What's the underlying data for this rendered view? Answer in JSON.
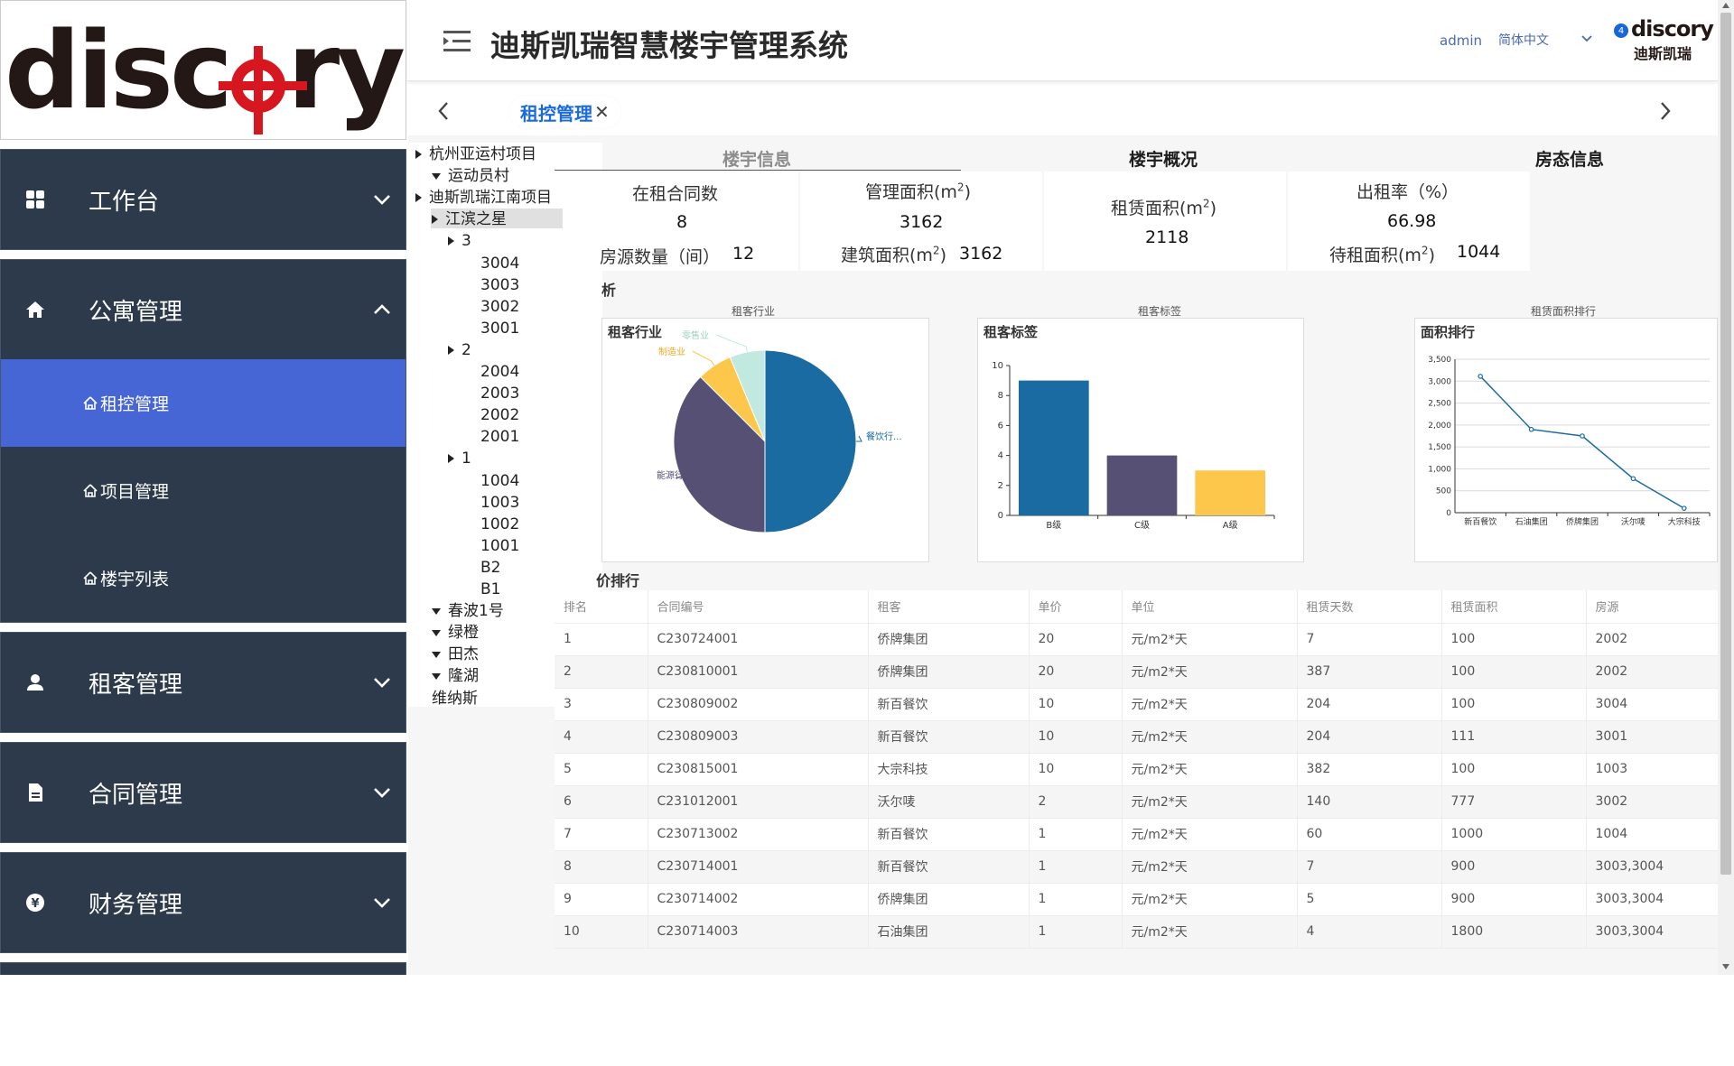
{
  "sidebar": {
    "logo_text_a": "disc",
    "logo_text_b": "ry",
    "menu": [
      {
        "label": "工作台",
        "icon": "dashboard-icon"
      },
      {
        "label": "公寓管理",
        "icon": "home-icon"
      },
      {
        "label": "租客管理",
        "icon": "person-icon"
      },
      {
        "label": "合同管理",
        "icon": "document-icon"
      },
      {
        "label": "财务管理",
        "icon": "yuan-icon"
      }
    ],
    "submenu": [
      {
        "label": "租控管理"
      },
      {
        "label": "项目管理"
      },
      {
        "label": "楼宇列表"
      }
    ]
  },
  "header": {
    "title": "迪斯凯瑞智慧楼宇管理系统",
    "user": "admin",
    "language": "简体中文",
    "badge": "4",
    "brand_en": "discory",
    "brand_cn": "迪斯凯瑞"
  },
  "tabs": {
    "active_label": "租控管理",
    "close": "✕"
  },
  "tree": [
    {
      "label": "杭州亚运村项目",
      "arrow": "r"
    },
    {
      "label": "运动员村",
      "arrow": "d"
    },
    {
      "label": "迪斯凯瑞江南项目",
      "arrow": "r"
    },
    {
      "label": "江滨之星",
      "arrow": "r"
    },
    {
      "label": "3",
      "arrow": "r"
    },
    {
      "label": "3004"
    },
    {
      "label": "3003"
    },
    {
      "label": "3002"
    },
    {
      "label": "3001"
    },
    {
      "label": "2",
      "arrow": "r"
    },
    {
      "label": "2004"
    },
    {
      "label": "2003"
    },
    {
      "label": "2002"
    },
    {
      "label": "2001"
    },
    {
      "label": "1",
      "arrow": "r"
    },
    {
      "label": "1004"
    },
    {
      "label": "1003"
    },
    {
      "label": "1002"
    },
    {
      "label": "1001"
    },
    {
      "label": "B2"
    },
    {
      "label": "B1"
    },
    {
      "label": "春波1号",
      "arrow": "d"
    },
    {
      "label": "绿橙",
      "arrow": "d"
    },
    {
      "label": "田杰",
      "arrow": "d"
    },
    {
      "label": "隆湖",
      "arrow": "d"
    },
    {
      "label": "维纳斯"
    }
  ],
  "page_tabs": [
    "楼宇信息",
    "楼宇概况",
    "房态信息"
  ],
  "stats": {
    "in_contract_label": "在租合同数",
    "in_contract_value": "8",
    "rooms_label": "房源数量（间）",
    "rooms_value": "12",
    "mgmt_area_label_a": "管理面积(m",
    "mgmt_area_label_sup": "2",
    "mgmt_area_label_b": ")",
    "mgmt_area_value": "3162",
    "build_area_label_a": "建筑面积(m",
    "build_area_label_sup": "2",
    "build_area_label_b": ")",
    "build_area_value": "3162",
    "lease_area_label_a": "租赁面积(m",
    "lease_area_label_sup": "2",
    "lease_area_label_b": ")",
    "lease_area_value": "2118",
    "occupancy_label": "出租率（%）",
    "occupancy_value": "66.98",
    "vacant_label_a": "待租面积(m",
    "vacant_label_sup": "2",
    "vacant_label_b": ")",
    "vacant_value": "1044"
  },
  "section_frag_1": "析",
  "section_frag_2": "价排行",
  "charts": {
    "pie_small_title": "租客行业",
    "bar_small_title": "租客标签",
    "line_small_title": "租赁面积排行",
    "pie_box_title": "租客行业",
    "bar_box_title": "租客标签",
    "line_box_title": "面积排行"
  },
  "chart_data": [
    {
      "type": "pie",
      "title": "租客行业",
      "slices": [
        {
          "name": "餐饮行...",
          "value": 50,
          "color": "#196ba2"
        },
        {
          "name": "能源行业",
          "value": 37.5,
          "color": "#575075"
        },
        {
          "name": "制造业",
          "value": 6.25,
          "color": "#fdc74c"
        },
        {
          "name": "零售业",
          "value": 6.25,
          "color": "#c2e9df"
        }
      ]
    },
    {
      "type": "bar",
      "title": "租客标签",
      "categories": [
        "B级",
        "C级",
        "A级"
      ],
      "values": [
        9,
        4,
        3
      ],
      "colors": [
        "#196ba2",
        "#575075",
        "#fdc74c"
      ],
      "ylim": [
        0,
        10
      ],
      "yticks": [
        0,
        2,
        4,
        6,
        8,
        10
      ]
    },
    {
      "type": "line",
      "title": "面积排行",
      "categories": [
        "新百餐饮",
        "石油集团",
        "侨牌集团",
        "沃尔唛",
        "大宗科技"
      ],
      "values": [
        3111,
        1900,
        1750,
        777,
        100
      ],
      "ylim": [
        0,
        3500
      ],
      "yticks": [
        "0",
        "500",
        "1,000",
        "1,500",
        "2,000",
        "2,500",
        "3,000",
        "3,500"
      ],
      "color": "#196ba2"
    }
  ],
  "table": {
    "columns": [
      "排名",
      "合同编号",
      "租客",
      "单价",
      "单位",
      "租赁天数",
      "租赁面积",
      "房源"
    ],
    "rows": [
      [
        "1",
        "C230724001",
        "侨牌集团",
        "20",
        "元/m2*天",
        "7",
        "100",
        "2002"
      ],
      [
        "2",
        "C230810001",
        "侨牌集团",
        "20",
        "元/m2*天",
        "387",
        "100",
        "2002"
      ],
      [
        "3",
        "C230809002",
        "新百餐饮",
        "10",
        "元/m2*天",
        "204",
        "100",
        "3004"
      ],
      [
        "4",
        "C230809003",
        "新百餐饮",
        "10",
        "元/m2*天",
        "204",
        "111",
        "3001"
      ],
      [
        "5",
        "C230815001",
        "大宗科技",
        "10",
        "元/m2*天",
        "382",
        "100",
        "1003"
      ],
      [
        "6",
        "C231012001",
        "沃尔唛",
        "2",
        "元/m2*天",
        "140",
        "777",
        "3002"
      ],
      [
        "7",
        "C230713002",
        "新百餐饮",
        "1",
        "元/m2*天",
        "60",
        "1000",
        "1004"
      ],
      [
        "8",
        "C230714001",
        "新百餐饮",
        "1",
        "元/m2*天",
        "7",
        "900",
        "3003,3004"
      ],
      [
        "9",
        "C230714002",
        "侨牌集团",
        "1",
        "元/m2*天",
        "5",
        "900",
        "3003,3004"
      ],
      [
        "10",
        "C230714003",
        "石油集团",
        "1",
        "元/m2*天",
        "4",
        "1800",
        "3003,3004"
      ]
    ]
  },
  "colors": {
    "sidebar_bg": "#2d3a4b",
    "active_menu": "#4766d6",
    "brand_red": "#d7171f",
    "accent_blue": "#1a6ae0"
  }
}
